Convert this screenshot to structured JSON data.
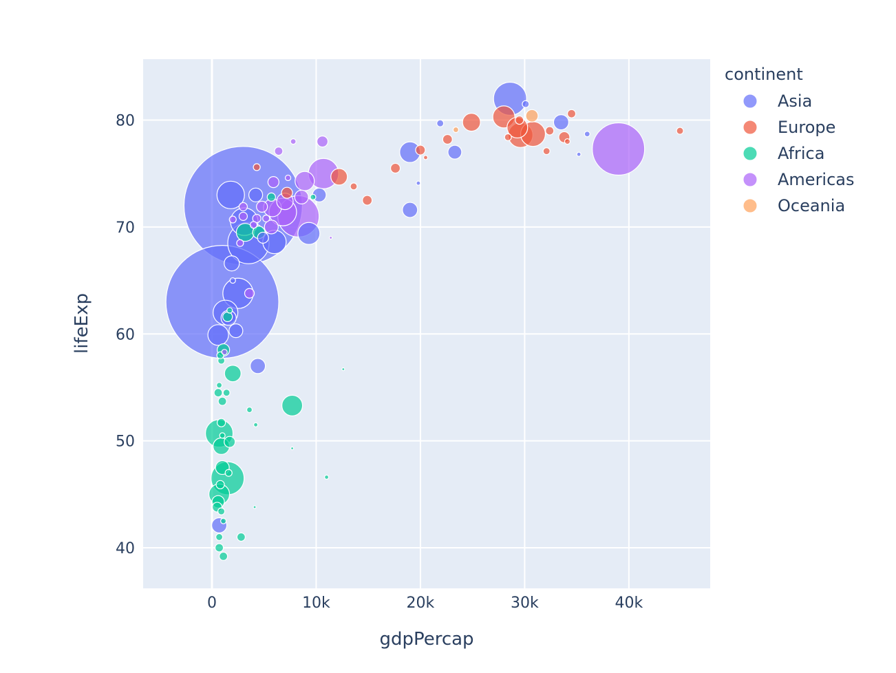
{
  "chart_data": {
    "type": "scatter",
    "title": "",
    "xlabel": "gdpPercap",
    "ylabel": "lifeExp",
    "xlim": [
      -6600,
      47800
    ],
    "ylim": [
      36.2,
      85.7
    ],
    "x_ticks": [
      0,
      10000,
      20000,
      30000,
      40000
    ],
    "x_tick_labels": [
      "0",
      "10k",
      "20k",
      "30k",
      "40k"
    ],
    "y_ticks": [
      40,
      50,
      60,
      70,
      80
    ],
    "y_tick_labels": [
      "40",
      "50",
      "60",
      "70",
      "80"
    ],
    "grid": true,
    "legend": {
      "title": "continent",
      "position": "right"
    },
    "series": [
      {
        "name": "Asia",
        "color": "#636efa",
        "points": [
          [
            3000,
            72.0,
            86
          ],
          [
            1000,
            63.0,
            82
          ],
          [
            28600,
            82.0,
            24
          ],
          [
            1800,
            73.0,
            20
          ],
          [
            3100,
            70.5,
            20
          ],
          [
            3500,
            68.5,
            30
          ],
          [
            2500,
            63.8,
            22
          ],
          [
            1300,
            62.0,
            18
          ],
          [
            600,
            59.9,
            15
          ],
          [
            1600,
            61.5,
            11
          ],
          [
            9300,
            69.4,
            16
          ],
          [
            19000,
            77.0,
            15
          ],
          [
            6000,
            68.6,
            17
          ],
          [
            4400,
            57.0,
            11
          ],
          [
            19000,
            71.6,
            11
          ],
          [
            700,
            42.1,
            11
          ],
          [
            23300,
            77.0,
            10
          ],
          [
            1900,
            66.6,
            11
          ],
          [
            2300,
            60.3,
            10
          ],
          [
            33500,
            79.8,
            11
          ],
          [
            10300,
            73.0,
            10
          ],
          [
            4200,
            73.0,
            10
          ],
          [
            4900,
            69.0,
            8
          ],
          [
            30100,
            81.5,
            5
          ],
          [
            36000,
            78.7,
            4
          ],
          [
            21900,
            79.7,
            5
          ],
          [
            19800,
            74.1,
            3
          ],
          [
            35200,
            76.8,
            3
          ],
          [
            2000,
            65.0,
            4
          ]
        ]
      },
      {
        "name": "Europe",
        "color": "#EF553B",
        "points": [
          [
            29600,
            78.6,
            18
          ],
          [
            30800,
            78.7,
            18
          ],
          [
            28000,
            80.3,
            16
          ],
          [
            29300,
            79.3,
            15
          ],
          [
            24900,
            79.8,
            13
          ],
          [
            12200,
            74.7,
            12
          ],
          [
            7200,
            73.2,
            8
          ],
          [
            34500,
            80.6,
            6
          ],
          [
            33800,
            78.4,
            8
          ],
          [
            32400,
            79.0,
            6
          ],
          [
            17600,
            75.5,
            7
          ],
          [
            20000,
            77.2,
            7
          ],
          [
            14900,
            72.5,
            7
          ],
          [
            13600,
            73.8,
            5
          ],
          [
            22600,
            78.2,
            7
          ],
          [
            44900,
            79.0,
            5
          ],
          [
            32100,
            77.1,
            5
          ],
          [
            29500,
            80.0,
            6
          ],
          [
            20500,
            76.5,
            3
          ],
          [
            28400,
            78.4,
            5
          ],
          [
            4300,
            75.6,
            5
          ],
          [
            34100,
            78.0,
            4
          ]
        ]
      },
      {
        "name": "Africa",
        "color": "#00cc96",
        "points": [
          [
            1500,
            46.5,
            24
          ],
          [
            700,
            50.7,
            20
          ],
          [
            700,
            45.0,
            15
          ],
          [
            3200,
            69.5,
            13
          ],
          [
            2000,
            56.3,
            12
          ],
          [
            7700,
            53.3,
            15
          ],
          [
            900,
            49.5,
            12
          ],
          [
            1000,
            47.5,
            10
          ],
          [
            600,
            44.3,
            9
          ],
          [
            1700,
            49.9,
            8
          ],
          [
            1100,
            58.5,
            9
          ],
          [
            500,
            43.8,
            7
          ],
          [
            1500,
            61.6,
            7
          ],
          [
            4500,
            69.5,
            9
          ],
          [
            5700,
            72.8,
            6
          ],
          [
            2800,
            41.0,
            6
          ],
          [
            700,
            40.0,
            6
          ],
          [
            1100,
            39.2,
            6
          ],
          [
            900,
            51.7,
            6
          ],
          [
            600,
            54.5,
            6
          ],
          [
            1000,
            53.7,
            6
          ],
          [
            800,
            45.9,
            6
          ],
          [
            900,
            43.4,
            5
          ],
          [
            1600,
            47.0,
            5
          ],
          [
            700,
            41.0,
            5
          ],
          [
            700,
            55.2,
            4
          ],
          [
            1400,
            54.5,
            5
          ],
          [
            900,
            57.5,
            5
          ],
          [
            3600,
            52.9,
            4
          ],
          [
            4200,
            51.5,
            3
          ],
          [
            11000,
            46.6,
            3
          ],
          [
            12600,
            56.7,
            2
          ],
          [
            1700,
            62.2,
            4
          ],
          [
            9700,
            72.8,
            4
          ],
          [
            1100,
            42.5,
            4
          ],
          [
            4100,
            43.8,
            2
          ],
          [
            7700,
            49.3,
            2
          ],
          [
            1000,
            50.5,
            4
          ],
          [
            800,
            58.0,
            5
          ]
        ]
      },
      {
        "name": "Americas",
        "color": "#ab63fa",
        "points": [
          [
            39000,
            77.3,
            38
          ],
          [
            8300,
            71.0,
            30
          ],
          [
            10700,
            75.0,
            22
          ],
          [
            6800,
            71.4,
            20
          ],
          [
            5800,
            71.8,
            13
          ],
          [
            8900,
            74.3,
            14
          ],
          [
            7000,
            72.4,
            12
          ],
          [
            5700,
            70.0,
            10
          ],
          [
            8600,
            72.8,
            10
          ],
          [
            4800,
            71.9,
            8
          ],
          [
            10600,
            78.0,
            8
          ],
          [
            3000,
            71.0,
            6
          ],
          [
            5900,
            74.2,
            8
          ],
          [
            6400,
            77.1,
            6
          ],
          [
            7800,
            78.0,
            4
          ],
          [
            3600,
            63.8,
            7
          ],
          [
            2000,
            70.7,
            5
          ],
          [
            3000,
            71.9,
            6
          ],
          [
            2700,
            68.5,
            5
          ],
          [
            5200,
            70.8,
            5
          ],
          [
            1200,
            58.3,
            4
          ],
          [
            4300,
            70.8,
            6
          ],
          [
            7300,
            74.6,
            4
          ],
          [
            11400,
            69.0,
            2
          ],
          [
            4000,
            70.2,
            5
          ]
        ]
      },
      {
        "name": "Oceania",
        "color": "#FFA15A",
        "points": [
          [
            30700,
            80.4,
            9
          ],
          [
            23400,
            79.1,
            4
          ]
        ]
      }
    ]
  }
}
